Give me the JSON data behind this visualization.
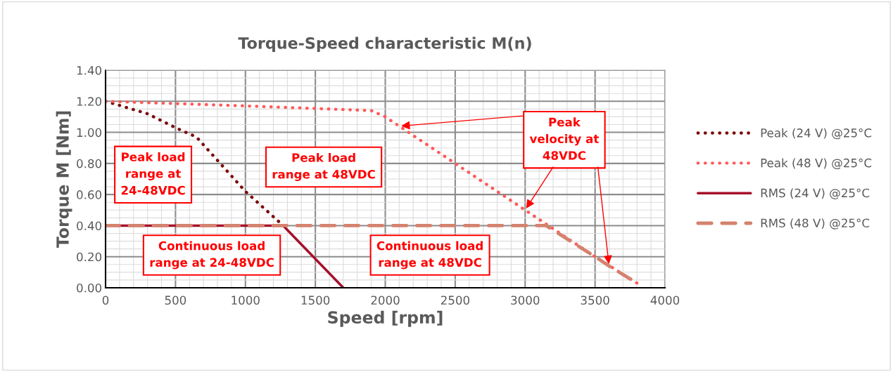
{
  "chart_data": {
    "type": "line",
    "title": "Torque-Speed characteristic M(n)",
    "xlabel": "Speed [rpm]",
    "ylabel": "Torque M [Nm]",
    "xlim": [
      0,
      4000
    ],
    "xticks": [
      0,
      500,
      1000,
      1500,
      2000,
      2500,
      3000,
      3500,
      4000
    ],
    "ylim": [
      0,
      1.4
    ],
    "yticks": [
      {
        "value": 0,
        "label": "0.00"
      },
      {
        "value": 0.2,
        "label": "0.20"
      },
      {
        "value": 0.4,
        "label": "0.40"
      },
      {
        "value": 0.6,
        "label": "0.60"
      },
      {
        "value": 0.8,
        "label": "0.80"
      },
      {
        "value": 1.0,
        "label": "1.00"
      },
      {
        "value": 1.2,
        "label": "1.20"
      },
      {
        "value": 1.4,
        "label": "1.40"
      }
    ],
    "grid": true,
    "legend": "right",
    "marker": "none",
    "series": [
      {
        "name": "Peak (24 V) @25°C",
        "color": "#7b0c0c",
        "line_style": "dotted",
        "x": [
          0,
          300,
          500,
          650,
          1000,
          1270
        ],
        "values": [
          1.2,
          1.12,
          1.03,
          0.97,
          0.62,
          0.4
        ]
      },
      {
        "name": "Peak (48 V) @25°C",
        "color": "#ff5b5b",
        "line_style": "dotted",
        "x": [
          0,
          1000,
          1900,
          2000,
          2100,
          3000,
          3500,
          3800
        ],
        "values": [
          1.2,
          1.17,
          1.14,
          1.1,
          1.04,
          0.5,
          0.2,
          0.03
        ]
      },
      {
        "name": "RMS (24 V) @25°C",
        "color": "#a50f2a",
        "line_style": "solid",
        "x": [
          0,
          1270,
          1700
        ],
        "values": [
          0.4,
          0.4,
          0.0
        ]
      },
      {
        "name": "RMS (48 V) @25°C",
        "color": "#d4826e",
        "line_style": "dashed",
        "x": [
          0,
          3150,
          3500,
          3600,
          3800
        ],
        "values": [
          0.4,
          0.4,
          0.2,
          0.14,
          0.03
        ]
      }
    ],
    "annotations": [
      "Peak load\nrange at\n24-48VDC",
      "Peak load\nrange at 48VDC",
      "Continuous load\nrange at 24-48VDC",
      "Continuous load\nrange at 48VDC",
      {
        "text": "Peak\nvelocity at\n48VDC",
        "x": 3000,
        "y": 0.5
      }
    ]
  }
}
